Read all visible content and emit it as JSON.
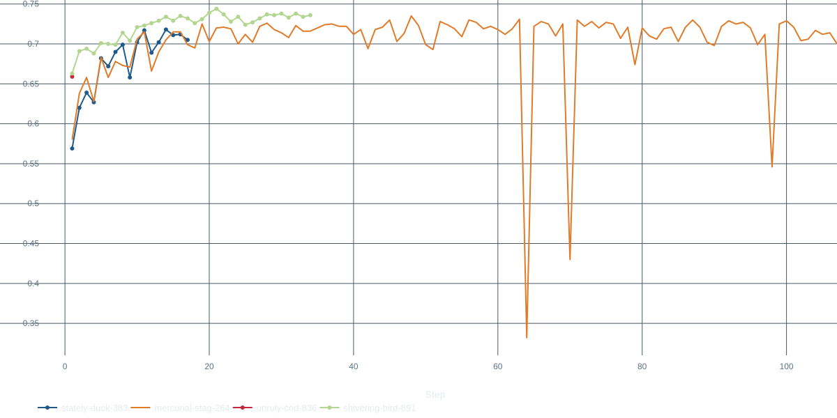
{
  "chart_data": {
    "type": "line",
    "xlabel": "Step",
    "ylabel": "",
    "xlim": [
      -9,
      107
    ],
    "ylim": [
      0.31,
      0.755
    ],
    "x_ticks": [
      0,
      20,
      40,
      60,
      80,
      100
    ],
    "y_ticks": [
      0.35,
      0.4,
      0.45,
      0.5,
      0.55,
      0.6,
      0.65,
      0.7,
      0.75
    ],
    "grid": true,
    "legend_position": "bottom-left",
    "series": [
      {
        "name": "stately-duck-383",
        "color": "#1f5a8c",
        "markers": true,
        "x": [
          1,
          2,
          3,
          4,
          5,
          6,
          7,
          8,
          9,
          10,
          11,
          12,
          13,
          14,
          15,
          16,
          17
        ],
        "y": [
          0.569,
          0.62,
          0.639,
          0.627,
          0.682,
          0.672,
          0.69,
          0.699,
          0.658,
          0.702,
          0.717,
          0.689,
          0.702,
          0.718,
          0.711,
          0.712,
          0.705
        ]
      },
      {
        "name": "mercurial-stag-264",
        "color": "#e07b2a",
        "markers": false,
        "x": [
          1,
          2,
          3,
          4,
          5,
          6,
          7,
          8,
          9,
          10,
          11,
          12,
          13,
          14,
          15,
          16,
          17,
          18,
          19,
          20,
          21,
          22,
          23,
          24,
          25,
          26,
          27,
          28,
          29,
          30,
          31,
          32,
          33,
          34,
          35,
          36,
          37,
          38,
          39,
          40,
          41,
          42,
          43,
          44,
          45,
          46,
          47,
          48,
          49,
          50,
          51,
          52,
          53,
          54,
          55,
          56,
          57,
          58,
          59,
          60,
          61,
          62,
          63,
          64,
          65,
          66,
          67,
          68,
          69,
          70,
          71,
          72,
          73,
          74,
          75,
          76,
          77,
          78,
          79,
          80,
          81,
          82,
          83,
          84,
          85,
          86,
          87,
          88,
          89,
          90,
          91,
          92,
          93,
          94,
          95,
          96,
          97,
          98,
          99,
          100,
          101,
          102,
          103,
          104,
          105,
          106,
          107
        ],
        "y": [
          0.58,
          0.638,
          0.658,
          0.628,
          0.683,
          0.658,
          0.678,
          0.673,
          0.671,
          0.706,
          0.715,
          0.666,
          0.69,
          0.705,
          0.715,
          0.715,
          0.699,
          0.695,
          0.725,
          0.703,
          0.72,
          0.721,
          0.719,
          0.7,
          0.712,
          0.702,
          0.722,
          0.726,
          0.718,
          0.714,
          0.708,
          0.723,
          0.716,
          0.716,
          0.72,
          0.724,
          0.725,
          0.722,
          0.722,
          0.712,
          0.718,
          0.694,
          0.718,
          0.721,
          0.73,
          0.703,
          0.713,
          0.735,
          0.723,
          0.699,
          0.693,
          0.728,
          0.724,
          0.719,
          0.709,
          0.73,
          0.727,
          0.719,
          0.722,
          0.718,
          0.712,
          0.719,
          0.731,
          0.332,
          0.722,
          0.728,
          0.725,
          0.71,
          0.725,
          0.43,
          0.73,
          0.722,
          0.728,
          0.72,
          0.727,
          0.725,
          0.707,
          0.721,
          0.674,
          0.72,
          0.71,
          0.706,
          0.719,
          0.721,
          0.703,
          0.721,
          0.73,
          0.721,
          0.702,
          0.698,
          0.722,
          0.729,
          0.725,
          0.727,
          0.72,
          0.699,
          0.712,
          0.546,
          0.725,
          0.729,
          0.721,
          0.704,
          0.706,
          0.717,
          0.712,
          0.714,
          0.7
        ]
      },
      {
        "name": "unruly-cod-836",
        "color": "#c4283c",
        "markers": true,
        "x": [
          1
        ],
        "y": [
          0.659
        ]
      },
      {
        "name": "shivering-bird-891",
        "color": "#b2d68f",
        "markers": true,
        "x": [
          1,
          2,
          3,
          4,
          5,
          6,
          7,
          8,
          9,
          10,
          11,
          12,
          13,
          14,
          15,
          16,
          17,
          18,
          19,
          20,
          21,
          22,
          23,
          24,
          25,
          26,
          27,
          28,
          29,
          30,
          31,
          32,
          33,
          34
        ],
        "y": [
          0.663,
          0.691,
          0.694,
          0.688,
          0.701,
          0.7,
          0.699,
          0.714,
          0.704,
          0.721,
          0.723,
          0.726,
          0.729,
          0.734,
          0.729,
          0.735,
          0.732,
          0.726,
          0.731,
          0.739,
          0.744,
          0.737,
          0.728,
          0.734,
          0.724,
          0.727,
          0.732,
          0.737,
          0.736,
          0.738,
          0.733,
          0.738,
          0.734,
          0.736
        ]
      }
    ]
  }
}
